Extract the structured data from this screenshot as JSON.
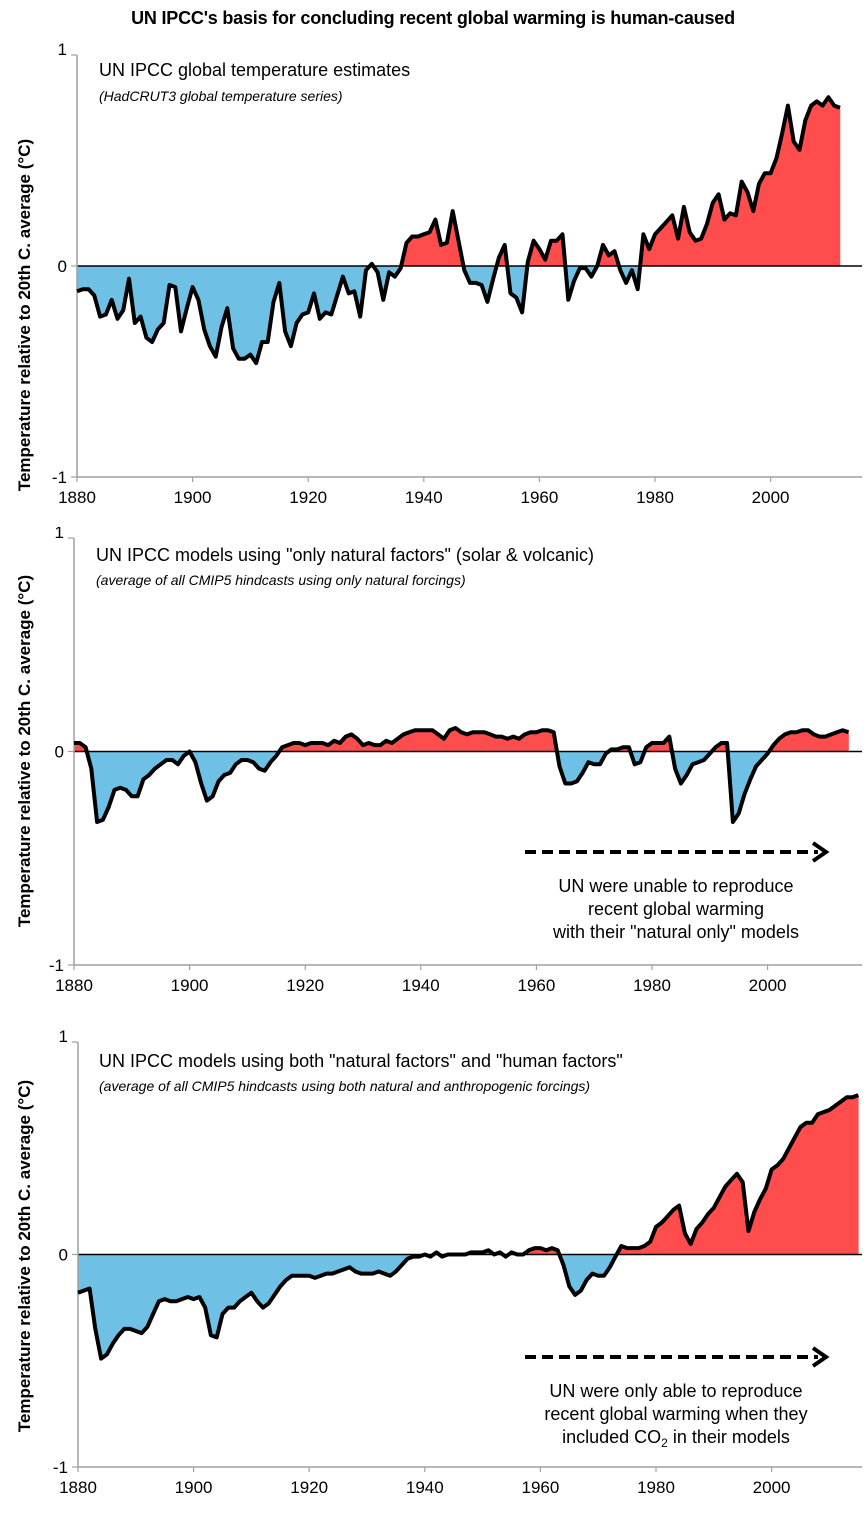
{
  "page": {
    "title": "UN IPCC's basis for concluding recent global warming is human-caused",
    "colors": {
      "positive": "#ff4d4d",
      "negative": "#6ec1e4",
      "line": "#000000",
      "axis": "#a0a0a0"
    }
  },
  "chart_data": [
    {
      "type": "area",
      "title": "UN IPCC global temperature estimates",
      "subtitle": "(HadCRUT3 global temperature series)",
      "xlabel": "",
      "ylabel": "Temperature relative to 20th C. average (°C)",
      "xlim": [
        1880,
        2015
      ],
      "ylim": [
        -1,
        1
      ],
      "x_ticks": [
        "1880",
        "1900",
        "1920",
        "1940",
        "1960",
        "1980",
        "2000"
      ],
      "y_ticks": [
        "-1",
        "0",
        "1"
      ],
      "grid": false,
      "x_start": 1880,
      "values": [
        -0.12,
        -0.11,
        -0.11,
        -0.14,
        -0.24,
        -0.23,
        -0.16,
        -0.25,
        -0.21,
        -0.06,
        -0.27,
        -0.24,
        -0.34,
        -0.36,
        -0.3,
        -0.27,
        -0.09,
        -0.1,
        -0.31,
        -0.2,
        -0.1,
        -0.16,
        -0.3,
        -0.38,
        -0.43,
        -0.29,
        -0.2,
        -0.39,
        -0.44,
        -0.44,
        -0.42,
        -0.46,
        -0.36,
        -0.36,
        -0.17,
        -0.08,
        -0.31,
        -0.38,
        -0.27,
        -0.23,
        -0.22,
        -0.13,
        -0.25,
        -0.22,
        -0.23,
        -0.14,
        -0.05,
        -0.13,
        -0.12,
        -0.24,
        -0.02,
        0.01,
        -0.03,
        -0.16,
        -0.03,
        -0.05,
        -0.01,
        0.11,
        0.14,
        0.14,
        0.15,
        0.16,
        0.22,
        0.1,
        0.11,
        0.26,
        0.12,
        -0.02,
        -0.08,
        -0.08,
        -0.09,
        -0.17,
        -0.06,
        0.04,
        0.1,
        -0.13,
        -0.15,
        -0.22,
        0.02,
        0.12,
        0.08,
        0.03,
        0.12,
        0.12,
        0.15,
        -0.16,
        -0.07,
        -0.01,
        -0.01,
        -0.05,
        0.0,
        0.1,
        0.05,
        0.07,
        -0.02,
        -0.08,
        -0.02,
        -0.11,
        0.15,
        0.08,
        0.15,
        0.18,
        0.21,
        0.24,
        0.13,
        0.28,
        0.16,
        0.12,
        0.13,
        0.2,
        0.3,
        0.34,
        0.22,
        0.25,
        0.24,
        0.4,
        0.35,
        0.26,
        0.39,
        0.44,
        0.44,
        0.51,
        0.63,
        0.76,
        0.59,
        0.55,
        0.69,
        0.76,
        0.78,
        0.76,
        0.8,
        0.76,
        0.75
      ]
    },
    {
      "type": "area",
      "title": "UN IPCC models using \"only natural factors\" (solar & volcanic)",
      "subtitle": "(average of all CMIP5 hindcasts using only natural forcings)",
      "xlabel": "",
      "ylabel": "Temperature relative to 20th C. average (°C)",
      "xlim": [
        1880,
        2015
      ],
      "ylim": [
        -1,
        1
      ],
      "x_ticks": [
        "1880",
        "1900",
        "1920",
        "1940",
        "1960",
        "1980",
        "2000"
      ],
      "y_ticks": [
        "-1",
        "0",
        "1"
      ],
      "grid": false,
      "x_start": 1880,
      "values": [
        0.04,
        0.04,
        0.02,
        -0.08,
        -0.33,
        -0.32,
        -0.26,
        -0.18,
        -0.17,
        -0.18,
        -0.21,
        -0.21,
        -0.13,
        -0.11,
        -0.08,
        -0.06,
        -0.04,
        -0.04,
        -0.06,
        -0.02,
        0.0,
        -0.05,
        -0.15,
        -0.23,
        -0.21,
        -0.14,
        -0.11,
        -0.1,
        -0.06,
        -0.04,
        -0.04,
        -0.05,
        -0.08,
        -0.09,
        -0.05,
        -0.02,
        0.02,
        0.03,
        0.04,
        0.04,
        0.03,
        0.04,
        0.04,
        0.04,
        0.03,
        0.05,
        0.04,
        0.07,
        0.08,
        0.06,
        0.03,
        0.04,
        0.03,
        0.03,
        0.05,
        0.04,
        0.06,
        0.08,
        0.09,
        0.1,
        0.1,
        0.1,
        0.1,
        0.08,
        0.06,
        0.1,
        0.11,
        0.09,
        0.08,
        0.09,
        0.09,
        0.09,
        0.08,
        0.07,
        0.07,
        0.06,
        0.07,
        0.06,
        0.08,
        0.09,
        0.09,
        0.1,
        0.1,
        0.09,
        -0.07,
        -0.15,
        -0.15,
        -0.14,
        -0.1,
        -0.05,
        -0.06,
        -0.06,
        -0.01,
        0.01,
        0.01,
        0.02,
        0.02,
        -0.06,
        -0.05,
        0.02,
        0.04,
        0.04,
        0.04,
        0.07,
        -0.08,
        -0.15,
        -0.11,
        -0.06,
        -0.05,
        -0.04,
        -0.01,
        0.02,
        0.04,
        0.04,
        -0.33,
        -0.29,
        -0.2,
        -0.13,
        -0.07,
        -0.04,
        -0.01,
        0.03,
        0.06,
        0.08,
        0.09,
        0.09,
        0.1,
        0.1,
        0.08,
        0.07,
        0.07,
        0.08,
        0.09,
        0.1,
        0.09
      ]
    },
    {
      "type": "area",
      "title": "UN IPCC models using both \"natural factors\" and \"human factors\"",
      "subtitle": "(average of all CMIP5 hindcasts using both natural and anthropogenic forcings)",
      "xlabel": "",
      "ylabel": "Temperature relative to 20th C. average (°C)",
      "xlim": [
        1880,
        2015
      ],
      "ylim": [
        -1,
        1
      ],
      "x_ticks": [
        "1880",
        "1900",
        "1920",
        "1940",
        "1960",
        "1980",
        "2000"
      ],
      "y_ticks": [
        "-1",
        "0",
        "1"
      ],
      "grid": false,
      "x_start": 1880,
      "values": [
        -0.18,
        -0.17,
        -0.16,
        -0.35,
        -0.49,
        -0.47,
        -0.42,
        -0.38,
        -0.35,
        -0.35,
        -0.36,
        -0.37,
        -0.34,
        -0.28,
        -0.22,
        -0.21,
        -0.22,
        -0.22,
        -0.21,
        -0.2,
        -0.21,
        -0.2,
        -0.25,
        -0.38,
        -0.39,
        -0.28,
        -0.25,
        -0.25,
        -0.22,
        -0.2,
        -0.18,
        -0.22,
        -0.25,
        -0.23,
        -0.19,
        -0.15,
        -0.12,
        -0.1,
        -0.1,
        -0.1,
        -0.1,
        -0.11,
        -0.1,
        -0.09,
        -0.09,
        -0.08,
        -0.07,
        -0.06,
        -0.08,
        -0.09,
        -0.09,
        -0.09,
        -0.08,
        -0.09,
        -0.1,
        -0.08,
        -0.05,
        -0.02,
        -0.01,
        -0.01,
        0.0,
        -0.01,
        0.01,
        -0.01,
        0.0,
        0.0,
        0.0,
        0.0,
        0.01,
        0.01,
        0.01,
        0.02,
        0.0,
        0.01,
        -0.01,
        0.01,
        0.0,
        0.0,
        0.02,
        0.03,
        0.03,
        0.02,
        0.03,
        0.02,
        -0.05,
        -0.15,
        -0.19,
        -0.17,
        -0.12,
        -0.09,
        -0.1,
        -0.1,
        -0.06,
        -0.01,
        0.04,
        0.03,
        0.03,
        0.03,
        0.04,
        0.06,
        0.13,
        0.15,
        0.18,
        0.21,
        0.23,
        0.1,
        0.05,
        0.12,
        0.15,
        0.19,
        0.22,
        0.27,
        0.32,
        0.35,
        0.38,
        0.34,
        0.11,
        0.2,
        0.26,
        0.31,
        0.4,
        0.42,
        0.45,
        0.5,
        0.55,
        0.6,
        0.62,
        0.62,
        0.66,
        0.67,
        0.68,
        0.7,
        0.72,
        0.74,
        0.74,
        0.75
      ]
    }
  ],
  "annotations": {
    "panel2_note": [
      "UN were unable to reproduce",
      "recent global warming",
      "with their \"natural only\" models"
    ],
    "panel3_note_line1": "UN were only able to reproduce",
    "panel3_note_line2": "recent global warming when they",
    "panel3_note_line3_pre": "included CO",
    "panel3_note_line3_sub": "2",
    "panel3_note_line3_post": " in their models"
  }
}
